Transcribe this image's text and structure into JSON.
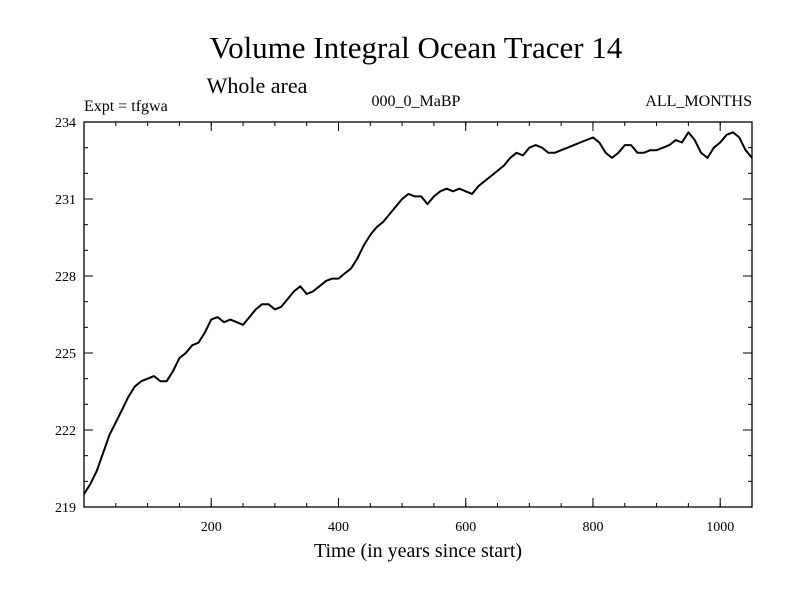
{
  "chart_data": {
    "type": "line",
    "title": "Volume Integral Ocean Tracer 14",
    "subtitle": "Whole area",
    "header_left": "Expt = tfgwa",
    "header_center": "000_0_MaBP",
    "header_right": "ALL_MONTHS",
    "xlabel": "Time (in years since start)",
    "ylabel": "",
    "xlim": [
      0,
      1050
    ],
    "ylim": [
      219,
      234
    ],
    "x_ticks": [
      200,
      400,
      600,
      800,
      1000
    ],
    "y_ticks": [
      219,
      222,
      225,
      228,
      231,
      234
    ],
    "x_minor_step": 50,
    "y_minor_step": 1,
    "grid": false,
    "line_color": "#000000",
    "series": [
      {
        "x": [
          0,
          10,
          20,
          30,
          40,
          50,
          60,
          70,
          80,
          90,
          100,
          110,
          120,
          130,
          140,
          150,
          160,
          170,
          180,
          190,
          200,
          210,
          220,
          230,
          240,
          250,
          260,
          270,
          280,
          290,
          300,
          310,
          320,
          330,
          340,
          350,
          360,
          370,
          380,
          390,
          400,
          410,
          420,
          430,
          440,
          450,
          460,
          470,
          480,
          490,
          500,
          510,
          520,
          530,
          540,
          550,
          560,
          570,
          580,
          590,
          600,
          610,
          620,
          630,
          640,
          650,
          660,
          670,
          680,
          690,
          700,
          710,
          720,
          730,
          740,
          750,
          760,
          770,
          780,
          790,
          800,
          810,
          820,
          830,
          840,
          850,
          860,
          870,
          880,
          890,
          900,
          910,
          920,
          930,
          940,
          950,
          960,
          970,
          980,
          990,
          1000,
          1010,
          1020,
          1030,
          1040,
          1050
        ],
        "values": [
          219.5,
          219.9,
          220.4,
          221.1,
          221.8,
          222.3,
          222.8,
          223.3,
          223.7,
          223.9,
          224.0,
          224.1,
          223.9,
          223.9,
          224.3,
          224.8,
          225.0,
          225.3,
          225.4,
          225.8,
          226.3,
          226.4,
          226.2,
          226.3,
          226.2,
          226.1,
          226.4,
          226.7,
          226.9,
          226.9,
          226.7,
          226.8,
          227.1,
          227.4,
          227.6,
          227.3,
          227.4,
          227.6,
          227.8,
          227.9,
          227.9,
          228.1,
          228.3,
          228.7,
          229.2,
          229.6,
          229.9,
          230.1,
          230.4,
          230.7,
          231.0,
          231.2,
          231.1,
          231.1,
          230.8,
          231.1,
          231.3,
          231.4,
          231.3,
          231.4,
          231.3,
          231.2,
          231.5,
          231.7,
          231.9,
          232.1,
          232.3,
          232.6,
          232.8,
          232.7,
          233.0,
          233.1,
          233.0,
          232.8,
          232.8,
          232.9,
          233.0,
          233.1,
          233.2,
          233.3,
          233.4,
          233.2,
          232.8,
          232.6,
          232.8,
          233.1,
          233.1,
          232.8,
          232.8,
          232.9,
          232.9,
          233.0,
          233.1,
          233.3,
          233.2,
          233.6,
          233.3,
          232.8,
          232.6,
          233.0,
          233.2,
          233.5,
          233.6,
          233.4,
          232.9,
          232.6
        ]
      }
    ]
  }
}
